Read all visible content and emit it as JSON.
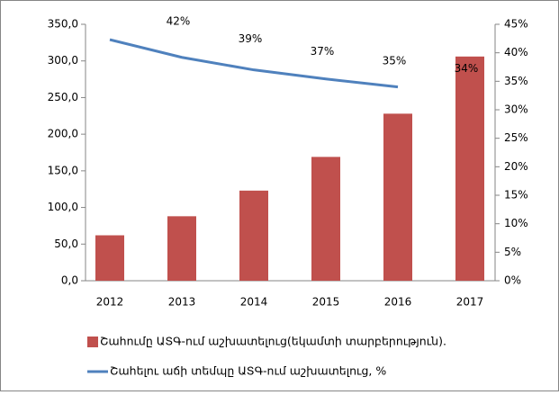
{
  "chart_data": {
    "type": "bar",
    "categories": [
      "2012",
      "2013",
      "2014",
      "2015",
      "2016",
      "2017"
    ],
    "series": [
      {
        "name": "Շահումը ԱՏԳ-ում աշխատելուց(եկամտի տարբերություն).",
        "type": "bar",
        "color": "#c0504d",
        "values": [
          62,
          88,
          123,
          169,
          228,
          306
        ]
      },
      {
        "name": "Շահելու աճի տեմպը ԱՏԳ-ում աշխատելուց, %",
        "type": "line",
        "axis": "y2",
        "color": "#4f81bd",
        "values": [
          42.3,
          39.2,
          37,
          35.4,
          34,
          null
        ],
        "value_labels": [
          "42%",
          "39%",
          "37%",
          "35%",
          "34%",
          null
        ]
      }
    ],
    "ylim": [
      0,
      350
    ],
    "yticks": [
      {
        "value": 0,
        "label": "0,0"
      },
      {
        "value": 50,
        "label": "50,0"
      },
      {
        "value": 100,
        "label": "100,0"
      },
      {
        "value": 150,
        "label": "150,0"
      },
      {
        "value": 200,
        "label": "200,0"
      },
      {
        "value": 250,
        "label": "250,0"
      },
      {
        "value": 300,
        "label": "300,0"
      },
      {
        "value": 350,
        "label": "350,0"
      }
    ],
    "y2lim": [
      0,
      45
    ],
    "y2ticks": [
      {
        "value": 0,
        "label": "0%"
      },
      {
        "value": 5,
        "label": "5%"
      },
      {
        "value": 10,
        "label": "10%"
      },
      {
        "value": 15,
        "label": "15%"
      },
      {
        "value": 20,
        "label": "20%"
      },
      {
        "value": 25,
        "label": "25%"
      },
      {
        "value": 30,
        "label": "30%"
      },
      {
        "value": 35,
        "label": "35%"
      },
      {
        "value": 40,
        "label": "40%"
      },
      {
        "value": 45,
        "label": "45%"
      }
    ],
    "legend": "bottom-left"
  }
}
